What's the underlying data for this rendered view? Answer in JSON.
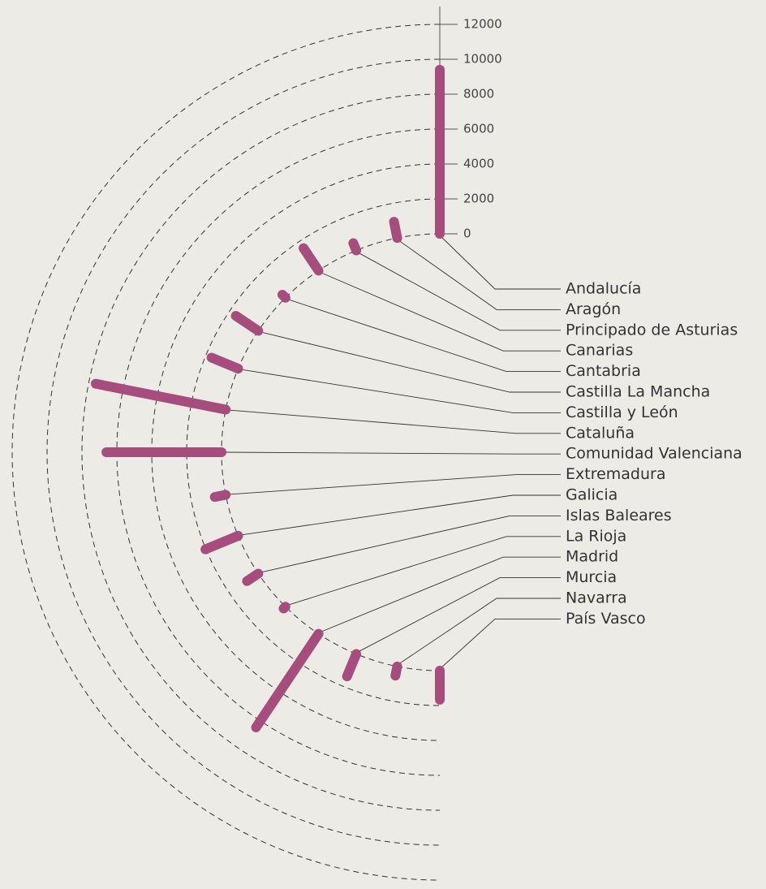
{
  "chart_data": {
    "type": "radial_bar",
    "categories": [
      "Andalucía",
      "Aragón",
      "Principado de Asturias",
      "Canarias",
      "Cantabria",
      "Castilla La Mancha",
      "Castilla y León",
      "Cataluña",
      "Comunidad Valenciana",
      "Extremadura",
      "Galicia",
      "Islas Baleares",
      "La Rioja",
      "Madrid",
      "Murcia",
      "Navarra",
      "País Vasco"
    ],
    "values": [
      9400,
      950,
      450,
      1550,
      250,
      1550,
      1650,
      7600,
      6600,
      640,
      2030,
      780,
      150,
      6450,
      1390,
      540,
      1670
    ],
    "color": "#a64d7e",
    "ylim": [
      0,
      12000
    ],
    "yticks": [
      0,
      2000,
      4000,
      6000,
      8000,
      10000,
      12000
    ],
    "grid": true
  }
}
